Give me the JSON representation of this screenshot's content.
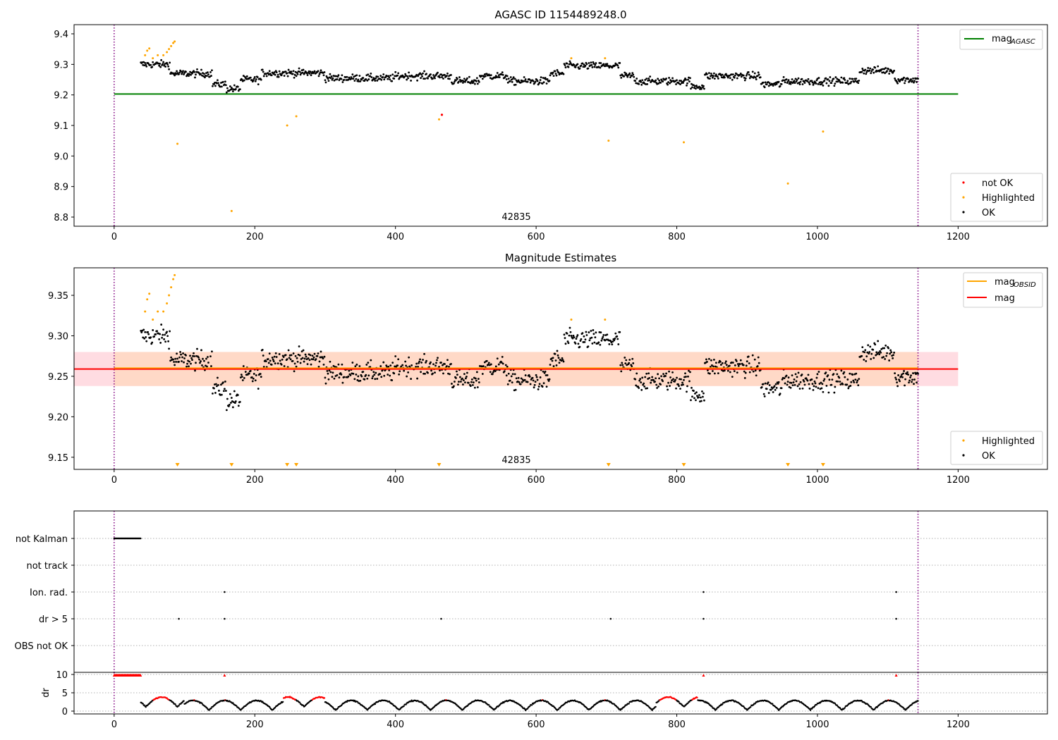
{
  "colors": {
    "ok": "#000000",
    "highlighted": "#ffa500",
    "not_ok": "#ff0000",
    "mag_agasc": "#008000",
    "mag_obsid": "#ffa500",
    "mag": "#ff0000",
    "obsid_bounds": "#800080",
    "band_outer": "#ffc0cb",
    "band_inner": "#ffd8c2"
  },
  "chart_data": [
    {
      "type": "scatter",
      "title": "AGASC ID 1154489248.0",
      "annotation": "42835",
      "xlim": [
        -57,
        1327
      ],
      "ylim": [
        8.77,
        9.43
      ],
      "x_ticks": [
        0,
        200,
        400,
        600,
        800,
        1000,
        1200
      ],
      "y_ticks": [
        "8.8",
        "8.9",
        "9.0",
        "9.1",
        "9.2",
        "9.3",
        "9.4"
      ],
      "hlines": [
        {
          "y": 9.203,
          "x": [
            0,
            1200
          ],
          "color": "green",
          "label": "mag_AGASC"
        }
      ],
      "vlines": [
        0,
        1143
      ],
      "legend_top": {
        "position": "upper right",
        "entries": [
          {
            "label": "mag",
            "subscript": "AGASC"
          }
        ]
      },
      "legend_bottom": {
        "position": "lower right",
        "entries": [
          "not OK",
          "Highlighted",
          "OK"
        ]
      },
      "series": [
        {
          "name": "OK",
          "description": "about 1100 samples between x=38 and x=1143; level near 9.30 at start, 9.21-9.28 through x=600, rising to 9.30 around x=650-700, 9.22-9.28 afterwards"
        },
        {
          "name": "Highlighted",
          "points": [
            [
              44,
              9.33
            ],
            [
              47,
              9.345
            ],
            [
              50,
              9.352
            ],
            [
              55,
              9.32
            ],
            [
              62,
              9.33
            ],
            [
              70,
              9.33
            ],
            [
              75,
              9.34
            ],
            [
              78,
              9.35
            ],
            [
              81,
              9.36
            ],
            [
              84,
              9.37
            ],
            [
              86,
              9.375
            ],
            [
              90,
              9.04
            ],
            [
              167,
              8.82
            ],
            [
              246,
              9.1
            ],
            [
              259,
              9.13
            ],
            [
              462,
              9.12
            ],
            [
              650,
              9.32
            ],
            [
              698,
              9.32
            ],
            [
              703,
              9.05
            ],
            [
              810,
              9.045
            ],
            [
              958,
              8.91
            ],
            [
              1008,
              9.08
            ]
          ]
        },
        {
          "name": "not OK",
          "points": [
            [
              466,
              9.135
            ]
          ]
        }
      ]
    },
    {
      "type": "scatter",
      "title": "Magnitude Estimates",
      "annotation": "42835",
      "xlim": [
        -57,
        1327
      ],
      "ylim": [
        9.135,
        9.384
      ],
      "x_ticks": [
        0,
        200,
        400,
        600,
        800,
        1000,
        1200
      ],
      "y_ticks": [
        "9.15",
        "9.20",
        "9.25",
        "9.30",
        "9.35"
      ],
      "hlines": [
        {
          "y": 9.259,
          "x": [
            -57,
            1200
          ],
          "color": "red",
          "label": "mag"
        },
        {
          "y": 9.259,
          "x": [
            0,
            1143
          ],
          "color": "orange",
          "label": "mag_OBSID"
        }
      ],
      "bands": [
        {
          "y": [
            9.238,
            9.28
          ],
          "x": [
            -57,
            1200
          ],
          "color": "pink"
        },
        {
          "y": [
            9.238,
            9.28
          ],
          "x": [
            0,
            1143
          ],
          "color": "peach"
        }
      ],
      "markers_bottom": [
        90,
        167,
        246,
        259,
        462,
        703,
        810,
        958,
        1008
      ],
      "vlines": [
        0,
        1143
      ],
      "legend_top": {
        "position": "upper right",
        "entries": [
          {
            "label": "mag",
            "subscript": "OBSID"
          },
          {
            "label": "mag",
            "subscript": ""
          }
        ]
      },
      "legend_bottom": {
        "position": "lower right",
        "entries": [
          "Highlighted",
          "OK"
        ]
      }
    },
    {
      "type": "scatter",
      "title": "",
      "xlim": [
        -57,
        1327
      ],
      "x_ticks": [
        0,
        200,
        400,
        600,
        800,
        1000,
        1200
      ],
      "y_categories": [
        "not Kalman",
        "not track",
        "Ion. rad.",
        "dr > 5",
        "OBS not OK"
      ],
      "flags": {
        "not Kalman": {
          "x_range": [
            0,
            38
          ]
        },
        "not track": {
          "x": []
        },
        "Ion. rad.": {
          "x": [
            157,
            838,
            1112
          ]
        },
        "dr > 5": {
          "x": [
            92,
            157,
            465,
            706,
            838,
            1112
          ]
        },
        "OBS not OK": {
          "x": []
        }
      },
      "vlines": [
        0,
        1143
      ]
    },
    {
      "type": "scatter",
      "ylabel": "dr",
      "xlim": [
        -57,
        1327
      ],
      "ylim": [
        -0.5,
        11
      ],
      "x_ticks": [
        0,
        200,
        400,
        600,
        800,
        1000,
        1200
      ],
      "y_ticks": [
        "0",
        "5",
        "10"
      ],
      "clipped_at_10": {
        "x_range": [
          0,
          38
        ],
        "extra_x": [
          157,
          838,
          1112
        ]
      },
      "description": "dr values between 0 and 4 for x=38-1143; red segments where dr > ~3",
      "vlines": [
        0,
        1143
      ]
    }
  ]
}
